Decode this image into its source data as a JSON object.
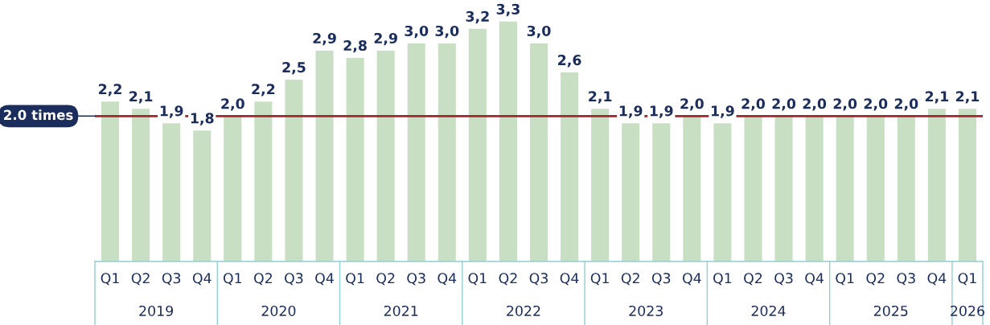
{
  "chart_data": {
    "type": "bar",
    "categories": [
      "Q1",
      "Q2",
      "Q3",
      "Q4",
      "Q1",
      "Q2",
      "Q3",
      "Q4",
      "Q1",
      "Q2",
      "Q3",
      "Q4",
      "Q1",
      "Q2",
      "Q3",
      "Q4",
      "Q1",
      "Q2",
      "Q3",
      "Q4",
      "Q1",
      "Q2",
      "Q3",
      "Q4",
      "Q1",
      "Q2",
      "Q3",
      "Q4",
      "Q1"
    ],
    "values": [
      2.2,
      2.1,
      1.9,
      1.8,
      2.0,
      2.2,
      2.5,
      2.9,
      2.8,
      2.9,
      3.0,
      3.0,
      3.2,
      3.3,
      3.0,
      2.6,
      2.1,
      1.9,
      1.9,
      2.0,
      1.9,
      2.0,
      2.0,
      2.0,
      2.0,
      2.0,
      2.0,
      2.1,
      2.1
    ],
    "value_labels": [
      "2,2",
      "2,1",
      "1,9",
      "1,8",
      "2,0",
      "2,2",
      "2,5",
      "2,9",
      "2,8",
      "2,9",
      "3,0",
      "3,0",
      "3,2",
      "3,3",
      "3,0",
      "2,6",
      "2,1",
      "1,9",
      "1,9",
      "2,0",
      "1,9",
      "2,0",
      "2,0",
      "2,0",
      "2,0",
      "2,0",
      "2,0",
      "2,1",
      "2,1"
    ],
    "color": "#c9dfc3",
    "ref_lines": [
      {
        "axis": "y",
        "value": 2.0,
        "label": "2.0 times",
        "color": "#a3262a"
      }
    ],
    "annotations": [
      "2019",
      "2020",
      "2021",
      "2022",
      "2023",
      "2024",
      "2025",
      "2026"
    ],
    "grid": false,
    "legend": false
  }
}
